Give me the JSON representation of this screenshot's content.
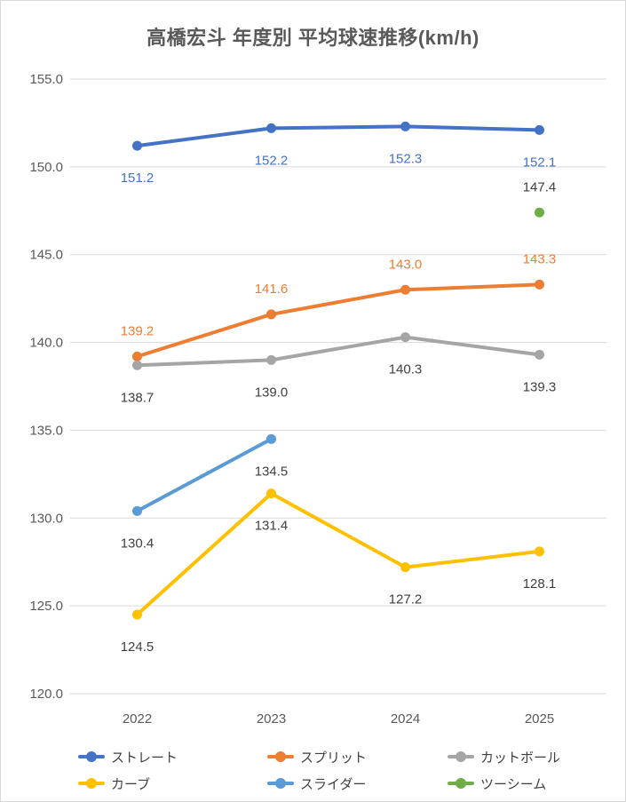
{
  "chart_data": {
    "type": "line",
    "title": "高橋宏斗 年度別 平均球速推移(km/h)",
    "categories": [
      "2022",
      "2023",
      "2024",
      "2025"
    ],
    "series": [
      {
        "id": "straight",
        "name": "ストレート",
        "color": "#4472C4",
        "label_color": "#4472C4",
        "label_position": "below",
        "values": [
          151.2,
          152.2,
          152.3,
          152.1
        ]
      },
      {
        "id": "split",
        "name": "スプリット",
        "color": "#ED7D31",
        "label_color": "#ED7D31",
        "label_position": "above",
        "values": [
          139.2,
          141.6,
          143.0,
          143.3
        ]
      },
      {
        "id": "cutball",
        "name": "カットボール",
        "color": "#A5A5A5",
        "label_color": "#404040",
        "label_position": "below",
        "values": [
          138.7,
          139.0,
          140.3,
          139.3
        ]
      },
      {
        "id": "curve",
        "name": "カーブ",
        "color": "#FFC000",
        "label_color": "#404040",
        "label_position": "below",
        "values": [
          124.5,
          131.4,
          127.2,
          128.1
        ]
      },
      {
        "id": "slider",
        "name": "スライダー",
        "color": "#5B9BD5",
        "label_color": "#404040",
        "label_position": "below",
        "values": [
          130.4,
          134.5,
          null,
          null
        ]
      },
      {
        "id": "two-seam",
        "name": "ツーシーム",
        "color": "#70AD47",
        "label_color": "#404040",
        "label_position": "above",
        "values": [
          null,
          null,
          null,
          147.4
        ]
      }
    ],
    "y_axis": {
      "min": 120,
      "max": 155,
      "step": 5,
      "ticks": [
        "155.0",
        "150.0",
        "145.0",
        "140.0",
        "135.0",
        "130.0",
        "125.0",
        "120.0"
      ],
      "label_format": "one_decimal"
    },
    "grid": true,
    "legend_position": "bottom",
    "colors": {
      "grid": "#D9D9D9",
      "axis_text": "#595959",
      "label_text": "#404040",
      "title_text": "#595959",
      "background": "#FFFFFF",
      "border": "#D8D8D8"
    }
  }
}
